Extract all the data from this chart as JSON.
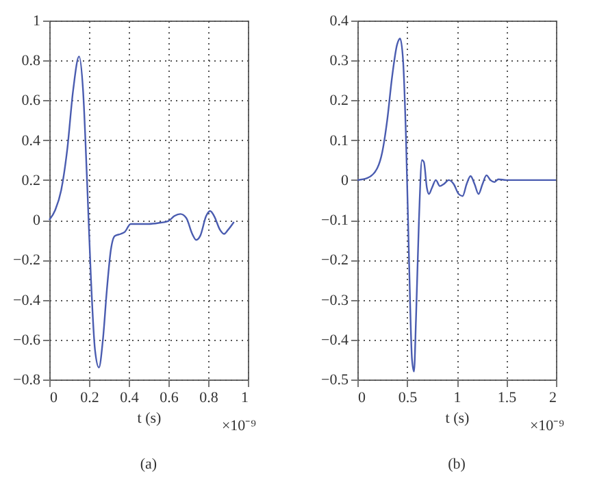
{
  "chart_data": [
    {
      "type": "line",
      "xlabel": "t (s)",
      "annotations": [
        "×10⁻⁹",
        "(a)"
      ],
      "xlim": [
        0,
        1
      ],
      "xticks": [
        0,
        0.2,
        0.4,
        0.6,
        0.8,
        1
      ],
      "ylim": [
        -0.8,
        1
      ],
      "yticks": [
        -0.8,
        -0.6,
        -0.4,
        -0.2,
        0,
        0.2,
        0.4,
        0.6,
        0.8,
        1
      ],
      "grid": true,
      "line_style": "solid",
      "marker": "none",
      "series": [
        {
          "color": "#4a5cb0",
          "x": [
            0,
            0.03,
            0.06,
            0.09,
            0.12,
            0.15,
            0.17,
            0.19,
            0.21,
            0.23,
            0.25,
            0.27,
            0.29,
            0.31,
            0.33,
            0.36,
            0.38,
            0.41,
            0.45,
            0.5,
            0.55,
            0.6,
            0.63,
            0.66,
            0.69,
            0.72,
            0.74,
            0.76,
            0.79,
            0.81,
            0.83,
            0.86,
            0.88,
            0.9,
            0.93
          ],
          "values": [
            0,
            0.05,
            0.15,
            0.35,
            0.65,
            0.82,
            0.65,
            0.2,
            -0.3,
            -0.65,
            -0.74,
            -0.6,
            -0.35,
            -0.15,
            -0.08,
            -0.07,
            -0.06,
            -0.02,
            -0.02,
            -0.02,
            -0.015,
            -0.005,
            0.02,
            0.03,
            0.01,
            -0.07,
            -0.1,
            -0.08,
            0.02,
            0.045,
            0.02,
            -0.05,
            -0.07,
            -0.05,
            -0.01
          ]
        }
      ]
    },
    {
      "type": "line",
      "xlabel": "t (s)",
      "annotations": [
        "×10⁻⁹",
        "(b)"
      ],
      "xlim": [
        0,
        2
      ],
      "xticks": [
        0,
        0.5,
        1,
        1.5,
        2
      ],
      "ylim": [
        -0.5,
        0.4
      ],
      "yticks": [
        -0.5,
        -0.4,
        -0.3,
        -0.2,
        -0.1,
        0,
        0.1,
        0.2,
        0.3,
        0.4
      ],
      "grid": true,
      "line_style": "solid",
      "marker": "none",
      "series": [
        {
          "color": "#4a5cb0",
          "x": [
            0,
            0.1,
            0.2,
            0.25,
            0.3,
            0.35,
            0.4,
            0.43,
            0.46,
            0.49,
            0.52,
            0.55,
            0.57,
            0.59,
            0.62,
            0.65,
            0.67,
            0.7,
            0.72,
            0.75,
            0.79,
            0.83,
            0.87,
            0.92,
            0.97,
            1.02,
            1.06,
            1.1,
            1.14,
            1.18,
            1.22,
            1.26,
            1.3,
            1.34,
            1.38,
            1.42,
            1.5,
            2.0
          ],
          "values": [
            0,
            0.005,
            0.03,
            0.07,
            0.15,
            0.26,
            0.34,
            0.355,
            0.3,
            0.1,
            -0.2,
            -0.45,
            -0.48,
            -0.35,
            -0.1,
            0.05,
            0.045,
            -0.02,
            -0.035,
            -0.02,
            0,
            -0.015,
            -0.01,
            0,
            -0.01,
            -0.035,
            -0.04,
            -0.01,
            0.01,
            -0.01,
            -0.035,
            -0.01,
            0.012,
            0,
            -0.005,
            0.002,
            0,
            0
          ]
        }
      ]
    }
  ]
}
